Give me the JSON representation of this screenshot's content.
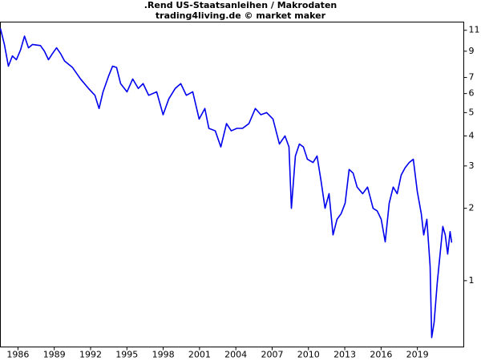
{
  "chart_data": {
    "type": "line",
    "title": ".Rend US-Staatsanleihen / Makrodaten",
    "subtitle": "trading4living.de © market maker",
    "log_scale": true,
    "y_axis_side": "right",
    "xlim": [
      1984.55,
      2022.83
    ],
    "xticks": [
      1986,
      1989,
      1992,
      1995,
      1998,
      2001,
      2004,
      2007,
      2010,
      2013,
      2016,
      2019
    ],
    "ylim": [
      0.53,
      11.9
    ],
    "yticks": [
      1,
      2,
      3,
      4,
      5,
      6,
      7,
      9,
      11
    ],
    "series": [
      {
        "color": "#0000ee",
        "x": [
          1984.55,
          1984.88,
          1985.21,
          1985.54,
          1985.87,
          1986.21,
          1986.54,
          1986.87,
          1987.2,
          1987.86,
          1988.19,
          1988.52,
          1988.85,
          1989.19,
          1989.52,
          1989.85,
          1990.51,
          1991.17,
          1991.83,
          1992.36,
          1992.7,
          1993.03,
          1993.49,
          1993.82,
          1994.15,
          1994.48,
          1995.01,
          1995.48,
          1995.94,
          1996.34,
          1996.8,
          1997.46,
          1997.99,
          1998.46,
          1998.99,
          1999.45,
          1999.91,
          2000.44,
          2000.97,
          2001.44,
          2001.77,
          2002.3,
          2002.76,
          2003.23,
          2003.62,
          2004.09,
          2004.55,
          2005.08,
          2005.61,
          2006.07,
          2006.54,
          2007.07,
          2007.6,
          2008.06,
          2008.39,
          2008.59,
          2008.92,
          2009.25,
          2009.58,
          2009.91,
          2010.38,
          2010.71,
          2011.04,
          2011.37,
          2011.7,
          2012.03,
          2012.36,
          2012.7,
          2013.03,
          2013.36,
          2013.69,
          2014.02,
          2014.48,
          2014.88,
          2015.34,
          2015.68,
          2016.01,
          2016.34,
          2016.67,
          2017,
          2017.33,
          2017.66,
          2017.99,
          2018.32,
          2018.66,
          2018.99,
          2019.32,
          2019.52,
          2019.78,
          2020.05,
          2020.18,
          2020.38,
          2020.64,
          2020.84,
          2021.1,
          2021.3,
          2021.5,
          2021.7,
          2021.83
        ],
        "values": [
          11.2,
          9.6,
          7.8,
          8.6,
          8.3,
          9.1,
          10.4,
          9.3,
          9.6,
          9.5,
          9.0,
          8.3,
          8.8,
          9.3,
          8.8,
          8.2,
          7.7,
          6.9,
          6.3,
          5.9,
          5.2,
          6.1,
          7.1,
          7.8,
          7.7,
          6.6,
          6.1,
          6.9,
          6.3,
          6.6,
          5.9,
          6.1,
          4.9,
          5.7,
          6.3,
          6.6,
          5.9,
          6.1,
          4.7,
          5.2,
          4.3,
          4.2,
          3.6,
          4.5,
          4.2,
          4.3,
          4.3,
          4.5,
          5.2,
          4.9,
          5.0,
          4.7,
          3.7,
          4.0,
          3.6,
          2.0,
          3.3,
          3.7,
          3.6,
          3.2,
          3.1,
          3.3,
          2.6,
          2.0,
          2.3,
          1.55,
          1.8,
          1.9,
          2.1,
          2.9,
          2.8,
          2.45,
          2.3,
          2.45,
          2.0,
          1.95,
          1.8,
          1.45,
          2.1,
          2.45,
          2.3,
          2.75,
          2.95,
          3.1,
          3.2,
          2.35,
          1.9,
          1.55,
          1.8,
          1.15,
          0.58,
          0.67,
          0.98,
          1.24,
          1.68,
          1.55,
          1.29,
          1.6,
          1.44
        ]
      }
    ]
  }
}
